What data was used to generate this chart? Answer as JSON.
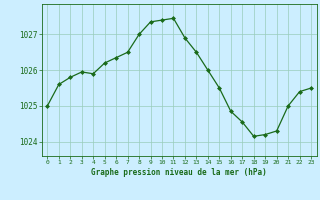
{
  "x": [
    0,
    1,
    2,
    3,
    4,
    5,
    6,
    7,
    8,
    9,
    10,
    11,
    12,
    13,
    14,
    15,
    16,
    17,
    18,
    19,
    20,
    21,
    22,
    23
  ],
  "y": [
    1025.0,
    1025.6,
    1025.8,
    1025.95,
    1025.9,
    1026.2,
    1026.35,
    1026.5,
    1027.0,
    1027.35,
    1027.4,
    1027.45,
    1026.9,
    1026.5,
    1026.0,
    1025.5,
    1024.85,
    1024.55,
    1024.15,
    1024.2,
    1024.3,
    1025.0,
    1025.4,
    1025.5
  ],
  "title": "Graphe pression niveau de la mer (hPa)",
  "line_color": "#1a6b1a",
  "bg_color": "#cceeff",
  "grid_color": "#99ccbb",
  "title_color": "#1a6b1a",
  "ylim_min": 1023.6,
  "ylim_max": 1027.85,
  "yticks": [
    1024,
    1025,
    1026,
    1027
  ],
  "xticks": [
    0,
    1,
    2,
    3,
    4,
    5,
    6,
    7,
    8,
    9,
    10,
    11,
    12,
    13,
    14,
    15,
    16,
    17,
    18,
    19,
    20,
    21,
    22,
    23
  ],
  "fig_width": 3.2,
  "fig_height": 2.0,
  "dpi": 100
}
